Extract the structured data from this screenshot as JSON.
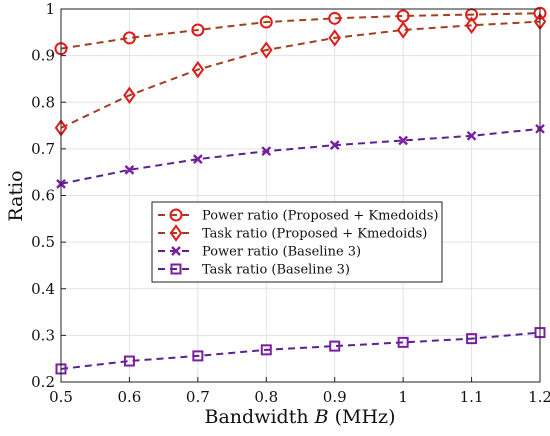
{
  "chart_data": {
    "type": "line",
    "xlabel": "Bandwidth B (MHz)",
    "xlabel_parts": {
      "prefix": "Bandwidth ",
      "symbol": "B",
      "suffix": " (MHz)"
    },
    "ylabel": "Ratio",
    "xlim": [
      0.5,
      1.2
    ],
    "ylim": [
      0.2,
      1.0
    ],
    "x_ticks": [
      "0.5",
      "0.6",
      "0.7",
      "0.8",
      "0.9",
      "1",
      "1.1",
      "1.2"
    ],
    "y_ticks": [
      "0.2",
      "0.3",
      "0.4",
      "0.5",
      "0.6",
      "0.7",
      "0.8",
      "0.9",
      "1"
    ],
    "grid": true,
    "legend_position": "center",
    "x": [
      0.5,
      0.6,
      0.7,
      0.8,
      0.9,
      1.0,
      1.1,
      1.2
    ],
    "series": [
      {
        "name": "Power ratio (Proposed + Kmedoids)",
        "marker": "circle",
        "color": "#a0401e",
        "markerColor": "#e01b1b",
        "values": [
          0.915,
          0.938,
          0.955,
          0.972,
          0.98,
          0.985,
          0.988,
          0.991
        ]
      },
      {
        "name": "Task ratio (Proposed + Kmedoids)",
        "marker": "diamond",
        "color": "#a0401e",
        "markerColor": "#e01b1b",
        "values": [
          0.745,
          0.815,
          0.87,
          0.912,
          0.938,
          0.955,
          0.965,
          0.973
        ]
      },
      {
        "name": "Power ratio (Baseline 3)",
        "marker": "x",
        "color": "#5a2290",
        "markerColor": "#7a1fa2",
        "values": [
          0.625,
          0.655,
          0.678,
          0.695,
          0.708,
          0.718,
          0.728,
          0.743
        ]
      },
      {
        "name": "Task ratio (Baseline 3)",
        "marker": "square",
        "color": "#5a2290",
        "markerColor": "#7a1fa2",
        "values": [
          0.228,
          0.245,
          0.256,
          0.269,
          0.277,
          0.285,
          0.293,
          0.306
        ]
      }
    ]
  }
}
